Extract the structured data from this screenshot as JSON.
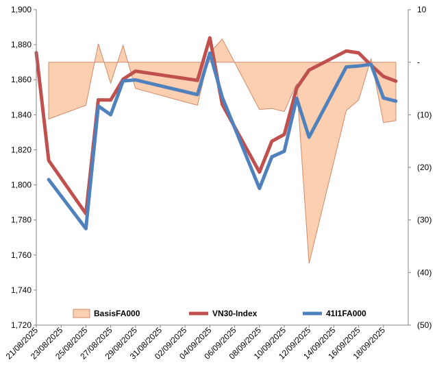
{
  "chart_data": {
    "type": "line",
    "title": "",
    "xlabel": "",
    "ylabel_left": "",
    "ylabel_right": "",
    "y_left": {
      "range": [
        1720,
        1900
      ],
      "ticks": [
        1720,
        1740,
        1760,
        1780,
        1800,
        1820,
        1840,
        1860,
        1880,
        1900
      ],
      "tick_labels": [
        "1,720",
        "1,740",
        "1,760",
        "1,780",
        "1,800",
        "1,820",
        "1,840",
        "1,860",
        "1,880",
        "1,900"
      ]
    },
    "y_right": {
      "range": [
        -10,
        50
      ],
      "reversed": true,
      "ticks": [
        -10,
        0,
        10,
        20,
        30,
        40,
        50
      ],
      "tick_labels": [
        "10",
        "-",
        "(10)",
        "(20)",
        "(30)",
        "(40)",
        "(50)"
      ]
    },
    "x_tick_labels": [
      "21/08/2025",
      "23/08/2025",
      "25/08/2025",
      "27/08/2025",
      "29/08/2025",
      "31/08/2025",
      "02/09/2025",
      "04/09/2025",
      "06/09/2025",
      "08/09/2025",
      "10/09/2025",
      "12/09/2025",
      "14/09/2025",
      "16/09/2025",
      "18/09/2025"
    ],
    "x_range": [
      "2025-08-21",
      "2025-09-20"
    ],
    "grid": false,
    "legend": "bottom",
    "series": [
      {
        "name": "BasisFA000",
        "type": "area",
        "axis": "right",
        "color": "#fbcfb0",
        "stroke": "#d08a6a",
        "x": [
          "2025-08-22",
          "2025-08-25",
          "2025-08-26",
          "2025-08-27",
          "2025-08-28",
          "2025-08-29",
          "2025-09-03",
          "2025-09-04",
          "2025-09-05",
          "2025-09-08",
          "2025-09-09",
          "2025-09-10",
          "2025-09-11",
          "2025-09-12",
          "2025-09-15",
          "2025-09-16",
          "2025-09-17",
          "2025-09-18",
          "2025-09-19"
        ],
        "values": [
          10.8,
          8.2,
          -3.5,
          4.0,
          -3.2,
          5.0,
          8.2,
          -1.8,
          -4.4,
          9.0,
          8.8,
          9.4,
          4.1,
          38.3,
          9.2,
          7.2,
          -0.7,
          11.5,
          11.1
        ]
      },
      {
        "name": "VN30-Index",
        "type": "line",
        "axis": "left",
        "color": "#c0504d",
        "x": [
          "2025-08-21",
          "2025-08-22",
          "2025-08-25",
          "2025-08-26",
          "2025-08-27",
          "2025-08-28",
          "2025-08-29",
          "2025-09-03",
          "2025-09-04",
          "2025-09-05",
          "2025-09-08",
          "2025-09-09",
          "2025-09-10",
          "2025-09-11",
          "2025-09-12",
          "2025-09-15",
          "2025-09-16",
          "2025-09-17",
          "2025-09-18",
          "2025-09-19"
        ],
        "values": [
          1875.4,
          1813.9,
          1783.6,
          1848.5,
          1848.4,
          1860.3,
          1864.9,
          1859.6,
          1883.9,
          1845.9,
          1807.3,
          1824.9,
          1828.8,
          1855.2,
          1865.5,
          1876.4,
          1875.3,
          1868.3,
          1861.9,
          1859.2
        ]
      },
      {
        "name": "41I1FA000",
        "type": "line",
        "axis": "left",
        "color": "#4f81bd",
        "x": [
          "2025-08-22",
          "2025-08-25",
          "2025-08-26",
          "2025-08-27",
          "2025-08-28",
          "2025-08-29",
          "2025-09-03",
          "2025-09-04",
          "2025-09-05",
          "2025-09-08",
          "2025-09-09",
          "2025-09-10",
          "2025-09-11",
          "2025-09-12",
          "2025-09-15",
          "2025-09-16",
          "2025-09-17",
          "2025-09-18",
          "2025-09-19"
        ],
        "values": [
          1803.0,
          1775.0,
          1845.0,
          1840.0,
          1859.3,
          1859.9,
          1851.5,
          1875.2,
          1850.0,
          1798.0,
          1816.0,
          1819.2,
          1849.4,
          1827.2,
          1867.3,
          1867.8,
          1868.8,
          1849.6,
          1847.8
        ]
      }
    ]
  }
}
